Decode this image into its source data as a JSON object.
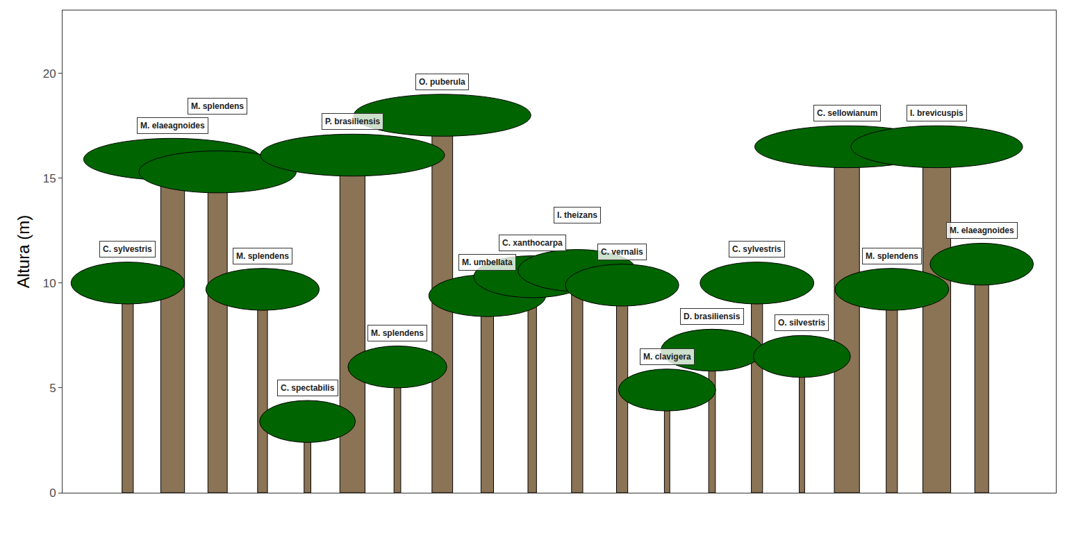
{
  "chart_data": {
    "type": "profile",
    "y_label": "Altura (m)",
    "x": [
      1,
      2,
      3,
      4,
      5,
      6,
      7,
      8,
      9,
      10,
      11,
      12,
      13,
      14,
      15,
      16,
      17,
      18,
      19,
      20
    ],
    "categories": [
      "C. sylvestris",
      "M. elaeagnoides",
      "M. splendens",
      "M. splendens",
      "C. spectabilis",
      "P. brasiliensis",
      "M. splendens",
      "O. puberula",
      "M. umbellata",
      "C. xanthocarpa",
      "I. theizans",
      "C. vernalis",
      "M. clavigera",
      "D. brasiliensis",
      "C. sylvestris",
      "O. silvestris",
      "C. sellowianum",
      "M. splendens",
      "I. brevicuspis",
      "M. elaeagnoides"
    ],
    "values": [
      10.0,
      15.9,
      15.3,
      9.7,
      3.4,
      16.1,
      6.0,
      18.0,
      9.4,
      10.3,
      10.6,
      9.9,
      4.9,
      6.8,
      10.0,
      6.5,
      16.5,
      9.7,
      16.5,
      10.9
    ],
    "crown_width": [
      2.52,
      3.96,
      3.5,
      2.52,
      2.13,
      4.1,
      2.2,
      3.94,
      2.6,
      2.6,
      2.63,
      2.52,
      2.16,
      2.27,
      2.53,
      2.16,
      4.1,
      2.53,
      3.82,
      2.3
    ],
    "crown_depth": [
      2.0,
      2.0,
      2.0,
      2.0,
      2.0,
      2.0,
      2.0,
      2.0,
      2.0,
      2.0,
      2.0,
      2.0,
      2.0,
      2.0,
      2.0,
      2.0,
      2.0,
      2.0,
      2.0,
      2.0
    ],
    "trunk_width": [
      0.25,
      0.53,
      0.43,
      0.22,
      0.15,
      0.56,
      0.15,
      0.46,
      0.28,
      0.19,
      0.25,
      0.25,
      0.12,
      0.15,
      0.25,
      0.12,
      0.56,
      0.25,
      0.62,
      0.31
    ],
    "color": "#006400",
    "xlim": [
      -0.45,
      21.65
    ],
    "ylim": [
      0,
      23
    ],
    "yticks": [
      0,
      5,
      10,
      15,
      20
    ],
    "grid": false,
    "tick_labels": "y"
  }
}
